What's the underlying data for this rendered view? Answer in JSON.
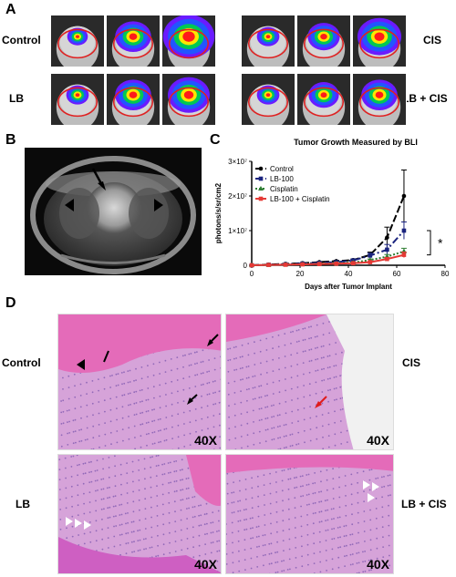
{
  "panels": {
    "a": "A",
    "b": "B",
    "c": "C",
    "d": "D"
  },
  "panel_a": {
    "labels": [
      "Control",
      "CIS",
      "LB",
      "LB + CIS"
    ],
    "colors": {
      "red_ring": "#e02020",
      "heat_red": "#ff1a1a",
      "heat_yellow": "#ffe600",
      "heat_green": "#00c853",
      "heat_blue": "#2255ff",
      "heat_purple": "#6a1bff"
    }
  },
  "panel_d": {
    "labels": [
      "Control",
      "CIS",
      "LB",
      "LB + CIS"
    ],
    "magnification": "40X",
    "scale_text": "[ ]"
  },
  "chart_data": {
    "type": "line",
    "title": "Tumor Growth Measured by BLI",
    "xlabel": "Days after Tumor Implant",
    "ylabel": "photons/s/sr/cm2",
    "xlim": [
      0,
      80
    ],
    "ylim": [
      0,
      30000000
    ],
    "x_ticks": [
      "0",
      "20",
      "40",
      "60",
      "80"
    ],
    "y_ticks": [
      "0",
      "1×10⁷",
      "2×10⁷",
      "3×10⁷"
    ],
    "significance": "*",
    "legend_position": "top-left",
    "series": [
      {
        "name": "Control",
        "color": "#000000",
        "dash": "8,3",
        "marker": "circle",
        "points": [
          [
            0,
            0
          ],
          [
            7,
            200000
          ],
          [
            14,
            400000
          ],
          [
            21,
            600000
          ],
          [
            28,
            900000
          ],
          [
            35,
            1200000
          ],
          [
            42,
            1500000
          ],
          [
            49,
            3000000
          ],
          [
            56,
            8000000
          ],
          [
            63,
            20000000
          ]
        ],
        "errors": [
          0,
          50000,
          80000,
          100000,
          150000,
          200000,
          300000,
          800000,
          3000000,
          7500000
        ]
      },
      {
        "name": "LB-100",
        "color": "#1a237e",
        "dash": "8,3,2,3",
        "marker": "square",
        "points": [
          [
            0,
            0
          ],
          [
            7,
            150000
          ],
          [
            14,
            300000
          ],
          [
            21,
            500000
          ],
          [
            28,
            700000
          ],
          [
            35,
            900000
          ],
          [
            42,
            1400000
          ],
          [
            49,
            2800000
          ],
          [
            56,
            4500000
          ],
          [
            63,
            10000000
          ]
        ],
        "errors": [
          0,
          40000,
          60000,
          80000,
          100000,
          150000,
          250000,
          700000,
          1500000,
          2500000
        ]
      },
      {
        "name": "Cisplatin",
        "color": "#2e7d32",
        "dash": "2,2",
        "marker": "triangle",
        "points": [
          [
            0,
            0
          ],
          [
            7,
            100000
          ],
          [
            14,
            200000
          ],
          [
            21,
            300000
          ],
          [
            28,
            450000
          ],
          [
            35,
            600000
          ],
          [
            42,
            800000
          ],
          [
            49,
            1500000
          ],
          [
            56,
            2500000
          ],
          [
            63,
            4000000
          ]
        ],
        "errors": [
          0,
          30000,
          40000,
          50000,
          60000,
          80000,
          120000,
          300000,
          600000,
          900000
        ]
      },
      {
        "name": "LB-100 + Cisplatin",
        "color": "#e53935",
        "dash": "",
        "marker": "square",
        "points": [
          [
            0,
            0
          ],
          [
            7,
            100000
          ],
          [
            14,
            150000
          ],
          [
            21,
            250000
          ],
          [
            28,
            350000
          ],
          [
            35,
            450000
          ],
          [
            42,
            600000
          ],
          [
            49,
            900000
          ],
          [
            56,
            1800000
          ],
          [
            63,
            3000000
          ]
        ],
        "errors": [
          0,
          20000,
          30000,
          40000,
          50000,
          60000,
          80000,
          200000,
          400000,
          800000
        ]
      }
    ]
  }
}
